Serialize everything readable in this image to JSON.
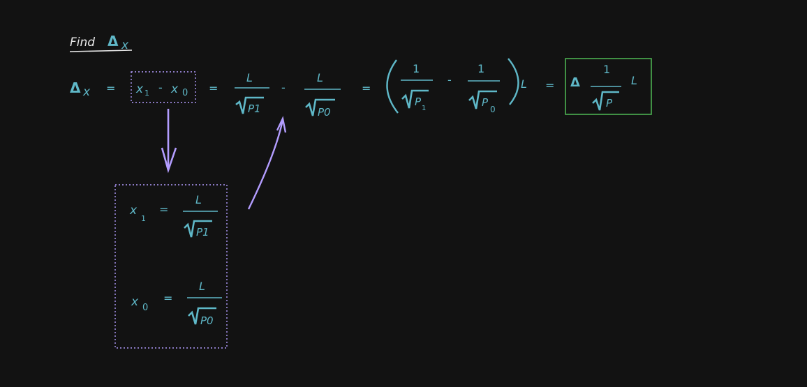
{
  "colors": {
    "background": "#121212",
    "math": "#5fb8c8",
    "title": "#e8e8e8",
    "highlight_box": "#4caf50",
    "annotation": "#b39dff"
  },
  "title": {
    "find": "Find",
    "delta": "Δ",
    "x": "x"
  },
  "equation": {
    "lhs_delta": "Δ",
    "lhs_x": "x",
    "eq": "=",
    "x": "x",
    "sub1": "1",
    "sub0": "0",
    "minus": "-",
    "L": "L",
    "one": "1",
    "P": "P",
    "P1": "P1",
    "P0": "P0",
    "paren_open": "(",
    "paren_close": ")",
    "result_delta": "Δ"
  },
  "definitions": {
    "x1": "x",
    "sub1": "1",
    "x0": "x",
    "sub0": "0",
    "eq": "=",
    "L": "L",
    "P1": "P1",
    "P0": "P0"
  }
}
